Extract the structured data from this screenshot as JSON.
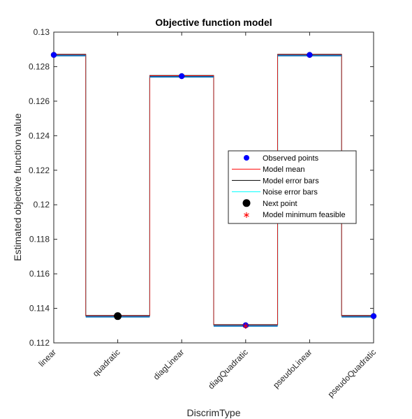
{
  "chart_data": {
    "type": "line",
    "title": "Objective function model",
    "xlabel": "DiscrimType",
    "ylabel": "Estimated objective function value",
    "categories": [
      "linear",
      "quadratic",
      "diagLinear",
      "diagQuadratic",
      "pseudoLinear",
      "pseudoQuadratic"
    ],
    "ylim": [
      0.112,
      0.13
    ],
    "yticks": [
      0.112,
      0.114,
      0.116,
      0.118,
      0.12,
      0.122,
      0.124,
      0.126,
      0.128,
      0.13
    ],
    "ytick_labels": [
      "0.112",
      "0.114",
      "0.116",
      "0.118",
      "0.12",
      "0.122",
      "0.124",
      "0.126",
      "0.128",
      "0.13"
    ],
    "grid": false,
    "legend_position": "center-right",
    "legend": [
      {
        "label": "Observed points",
        "marker": "dot",
        "color": "#0000ff"
      },
      {
        "label": "Model mean",
        "marker": "line",
        "color": "#ff0000"
      },
      {
        "label": "Model error bars",
        "marker": "line",
        "color": "#000000"
      },
      {
        "label": "Noise error bars",
        "marker": "line",
        "color": "#00ffff"
      },
      {
        "label": "Next point",
        "marker": "bigdot",
        "color": "#000000"
      },
      {
        "label": "Model minimum feasible",
        "marker": "star",
        "color": "#ff0000"
      }
    ],
    "series": [
      {
        "name": "Observed points",
        "values": [
          0.12868,
          null,
          0.12745,
          0.11302,
          0.12868,
          0.11355
        ]
      },
      {
        "name": "Model mean",
        "values": [
          0.12868,
          0.11355,
          0.12745,
          0.11302,
          0.12868,
          0.11355
        ]
      },
      {
        "name": "Next point",
        "values": [
          null,
          0.11355,
          null,
          null,
          null,
          null
        ]
      },
      {
        "name": "Model minimum feasible",
        "values": [
          null,
          null,
          null,
          0.11302,
          null,
          null
        ]
      }
    ]
  }
}
